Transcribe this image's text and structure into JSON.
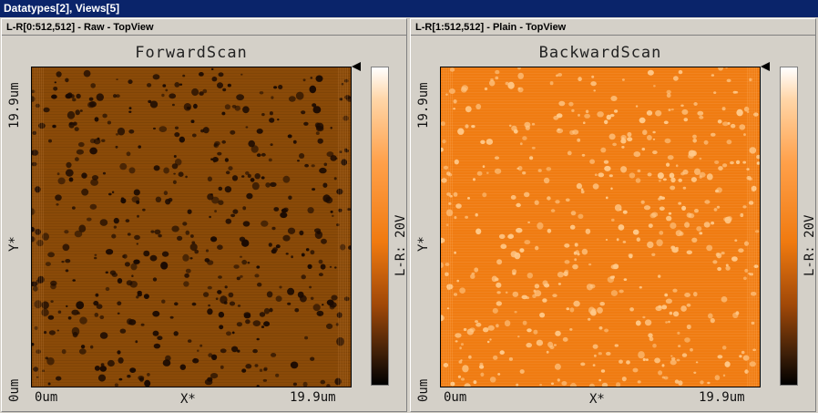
{
  "window": {
    "title": "Datatypes[2], Views[5]"
  },
  "panels": [
    {
      "header": "L-R[0:512,512] - Raw - TopView",
      "scan_title": "ForwardScan",
      "y_top": "19.9um",
      "y_mid": "Y*",
      "y_bottom": "0um",
      "x_left": "0um",
      "x_mid": "X*",
      "x_right": "19.9um",
      "colorbar_label": "L-R: 20V",
      "colors": {
        "base": "#8a4a08",
        "spot": "#1a0a02"
      }
    },
    {
      "header": "L-R[1:512,512] - Plain - TopView",
      "scan_title": "BackwardScan",
      "y_top": "19.9um",
      "y_mid": "Y*",
      "y_bottom": "0um",
      "x_left": "0um",
      "x_mid": "X*",
      "x_right": "19.9um",
      "colorbar_label": "L-R: 20V",
      "colors": {
        "base": "#f07c12",
        "spot": "#ffc98a"
      }
    }
  ]
}
